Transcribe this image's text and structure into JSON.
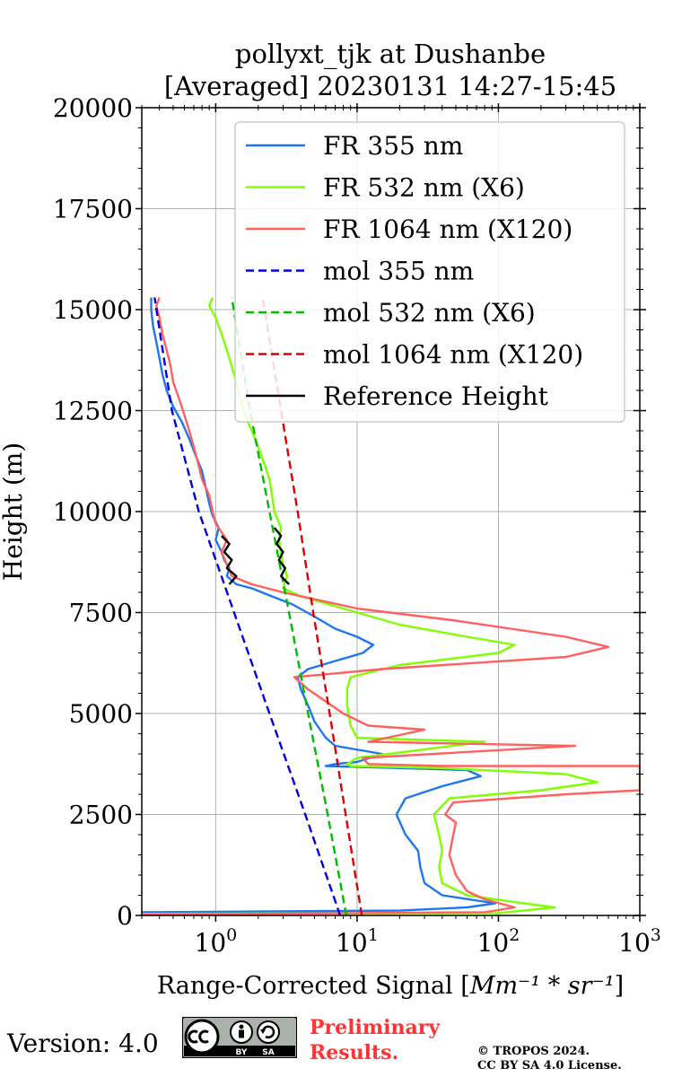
{
  "chart_data": {
    "type": "line",
    "title": "pollyxt_tjk at Dushanbe",
    "subtitle": "[Averaged] 20230131 14:27-15:45",
    "xlabel_prefix": "Range-Corrected Signal [",
    "xlabel_units": "Mm⁻¹ * sr⁻¹",
    "xlabel_suffix": "]",
    "ylabel": "Height (m)",
    "xscale": "log",
    "xlim": [
      0.3,
      1000
    ],
    "ylim": [
      0,
      20000
    ],
    "grid": true,
    "legend_position": "upper-right",
    "yticks": [
      0,
      2500,
      5000,
      7500,
      10000,
      12500,
      15000,
      17500,
      20000
    ],
    "ytick_labels": [
      "0",
      "2500",
      "5000",
      "7500",
      "10000",
      "12500",
      "15000",
      "17500",
      "20000"
    ],
    "xticks": [
      1,
      10,
      100,
      1000
    ],
    "xtick_bases": [
      "10",
      "10",
      "10",
      "10"
    ],
    "xtick_exps": [
      "0",
      "1",
      "2",
      "3"
    ],
    "series": [
      {
        "name": "FR 355 nm",
        "color": "#1f77f0",
        "dash": "solid",
        "points": [
          [
            0.3,
            80
          ],
          [
            20,
            120
          ],
          [
            60,
            200
          ],
          [
            95,
            300
          ],
          [
            40,
            500
          ],
          [
            30,
            800
          ],
          [
            28,
            1200
          ],
          [
            27,
            1600
          ],
          [
            22,
            2000
          ],
          [
            19,
            2500
          ],
          [
            22,
            2900
          ],
          [
            40,
            3200
          ],
          [
            75,
            3450
          ],
          [
            60,
            3600
          ],
          [
            20,
            3650
          ],
          [
            6,
            3700
          ],
          [
            7,
            3750
          ],
          [
            10,
            3800
          ],
          [
            15,
            4000
          ],
          [
            7,
            4200
          ],
          [
            6,
            4400
          ],
          [
            5,
            4800
          ],
          [
            4.5,
            5200
          ],
          [
            4,
            5600
          ],
          [
            3.8,
            5900
          ],
          [
            4.5,
            6100
          ],
          [
            7,
            6300
          ],
          [
            11,
            6500
          ],
          [
            13,
            6700
          ],
          [
            10,
            6900
          ],
          [
            7,
            7100
          ],
          [
            5,
            7400
          ],
          [
            3.5,
            7700
          ],
          [
            2.5,
            7900
          ],
          [
            1.8,
            8100
          ],
          [
            1.4,
            8200
          ],
          [
            1.2,
            8400
          ],
          [
            1.25,
            8600
          ],
          [
            1.15,
            8800
          ],
          [
            1.1,
            9000
          ],
          [
            1.0,
            9300
          ],
          [
            1.05,
            9600
          ],
          [
            0.95,
            9900
          ],
          [
            0.9,
            10200
          ],
          [
            0.85,
            10600
          ],
          [
            0.8,
            11000
          ],
          [
            0.72,
            11400
          ],
          [
            0.65,
            11800
          ],
          [
            0.58,
            12200
          ],
          [
            0.5,
            12600
          ],
          [
            0.45,
            13000
          ],
          [
            0.42,
            13400
          ],
          [
            0.4,
            13800
          ],
          [
            0.38,
            14200
          ],
          [
            0.36,
            14600
          ],
          [
            0.35,
            15000
          ],
          [
            0.35,
            15300
          ]
        ]
      },
      {
        "name": "FR 532 nm (X6)",
        "color": "#80ff00",
        "dash": "solid",
        "points": [
          [
            0.3,
            40
          ],
          [
            100,
            60
          ],
          [
            250,
            200
          ],
          [
            120,
            350
          ],
          [
            60,
            500
          ],
          [
            40,
            800
          ],
          [
            38,
            1200
          ],
          [
            40,
            1600
          ],
          [
            38,
            2000
          ],
          [
            35,
            2500
          ],
          [
            45,
            2900
          ],
          [
            200,
            3100
          ],
          [
            500,
            3300
          ],
          [
            300,
            3500
          ],
          [
            40,
            3650
          ],
          [
            9,
            3700
          ],
          [
            8.5,
            3750
          ],
          [
            10,
            3900
          ],
          [
            80,
            4300
          ],
          [
            10,
            4400
          ],
          [
            9,
            4700
          ],
          [
            8.5,
            5200
          ],
          [
            8.5,
            5600
          ],
          [
            9,
            5900
          ],
          [
            20,
            6200
          ],
          [
            100,
            6500
          ],
          [
            130,
            6700
          ],
          [
            60,
            6900
          ],
          [
            20,
            7200
          ],
          [
            8,
            7600
          ],
          [
            4,
            7900
          ],
          [
            3,
            8100
          ],
          [
            3.2,
            8400
          ],
          [
            3.0,
            8700
          ],
          [
            2.9,
            9000
          ],
          [
            2.8,
            9300
          ],
          [
            2.9,
            9600
          ],
          [
            2.6,
            10000
          ],
          [
            2.5,
            10400
          ],
          [
            2.4,
            10800
          ],
          [
            2.2,
            11200
          ],
          [
            2.0,
            11600
          ],
          [
            1.8,
            12000
          ],
          [
            1.6,
            12400
          ],
          [
            1.5,
            12800
          ],
          [
            1.4,
            13200
          ],
          [
            1.3,
            13600
          ],
          [
            1.2,
            14000
          ],
          [
            1.1,
            14400
          ],
          [
            1.0,
            14800
          ],
          [
            0.9,
            15100
          ],
          [
            0.95,
            15300
          ]
        ]
      },
      {
        "name": "FR 1064 nm (X120)",
        "color": "#ff6060",
        "dash": "solid",
        "points": [
          [
            0.3,
            20
          ],
          [
            80,
            80
          ],
          [
            130,
            200
          ],
          [
            80,
            400
          ],
          [
            60,
            600
          ],
          [
            50,
            1000
          ],
          [
            45,
            1500
          ],
          [
            48,
            2000
          ],
          [
            50,
            2300
          ],
          [
            42,
            2500
          ],
          [
            48,
            2800
          ],
          [
            300,
            3000
          ],
          [
            1000,
            3100
          ],
          [
            1000,
            3700
          ],
          [
            40,
            3700
          ],
          [
            12,
            3750
          ],
          [
            11,
            3900
          ],
          [
            350,
            4200
          ],
          [
            12,
            4300
          ],
          [
            30,
            4600
          ],
          [
            12,
            4700
          ],
          [
            8,
            5000
          ],
          [
            6,
            5300
          ],
          [
            4.5,
            5600
          ],
          [
            3.6,
            5900
          ],
          [
            15,
            6100
          ],
          [
            300,
            6400
          ],
          [
            600,
            6650
          ],
          [
            300,
            6900
          ],
          [
            50,
            7300
          ],
          [
            10,
            7600
          ],
          [
            3,
            8000
          ],
          [
            1.8,
            8200
          ],
          [
            1.3,
            8400
          ],
          [
            1.2,
            8700
          ],
          [
            1.1,
            9000
          ],
          [
            1.2,
            9300
          ],
          [
            1.0,
            9700
          ],
          [
            0.95,
            10000
          ],
          [
            0.9,
            10400
          ],
          [
            0.8,
            10800
          ],
          [
            0.75,
            11200
          ],
          [
            0.7,
            11600
          ],
          [
            0.65,
            12000
          ],
          [
            0.6,
            12400
          ],
          [
            0.55,
            12800
          ],
          [
            0.5,
            13200
          ],
          [
            0.48,
            13600
          ],
          [
            0.45,
            14000
          ],
          [
            0.42,
            14400
          ],
          [
            0.4,
            14800
          ],
          [
            0.38,
            15100
          ],
          [
            0.4,
            15300
          ]
        ]
      },
      {
        "name": "mol 355 nm",
        "color": "#0000dd",
        "dash": "dashed",
        "points": [
          [
            7.6,
            0
          ],
          [
            4.3,
            2500
          ],
          [
            2.4,
            5000
          ],
          [
            1.35,
            7500
          ],
          [
            0.76,
            10000
          ],
          [
            0.49,
            12500
          ],
          [
            0.37,
            15300
          ]
        ]
      },
      {
        "name": "mol 532 nm (X6)",
        "color": "#00bb00",
        "dash": "dashed",
        "points": [
          [
            8.4,
            0
          ],
          [
            6.2,
            2500
          ],
          [
            4.5,
            5000
          ],
          [
            3.3,
            7500
          ],
          [
            2.4,
            10000
          ],
          [
            1.75,
            12500
          ],
          [
            1.3,
            15300
          ]
        ]
      },
      {
        "name": "mol 1064 nm (X120)",
        "color": "#dd0000",
        "dash": "dashed",
        "points": [
          [
            10.8,
            0
          ],
          [
            8.3,
            2500
          ],
          [
            6.4,
            5000
          ],
          [
            4.9,
            7500
          ],
          [
            3.8,
            10000
          ],
          [
            2.9,
            12500
          ],
          [
            2.15,
            15300
          ]
        ]
      },
      {
        "name": "Reference Height",
        "color": "#000000",
        "dash": "solid",
        "segments": [
          [
            [
              1.1,
              9400
            ],
            [
              1.25,
              9200
            ],
            [
              1.15,
              9000
            ],
            [
              1.3,
              8800
            ],
            [
              1.2,
              8600
            ],
            [
              1.4,
              8400
            ],
            [
              1.25,
              8200
            ]
          ],
          [
            [
              2.6,
              9600
            ],
            [
              2.9,
              9400
            ],
            [
              2.7,
              9200
            ],
            [
              3.0,
              9000
            ],
            [
              2.8,
              8800
            ],
            [
              3.1,
              8600
            ],
            [
              2.9,
              8400
            ],
            [
              3.3,
              8200
            ]
          ]
        ]
      }
    ]
  },
  "footer": {
    "version": "Version: 4.0",
    "preliminary_line1": "Preliminary",
    "preliminary_line2": "Results.",
    "copyright_line1": "© TROPOS 2024.",
    "copyright_line2": "CC BY SA 4.0 License."
  }
}
